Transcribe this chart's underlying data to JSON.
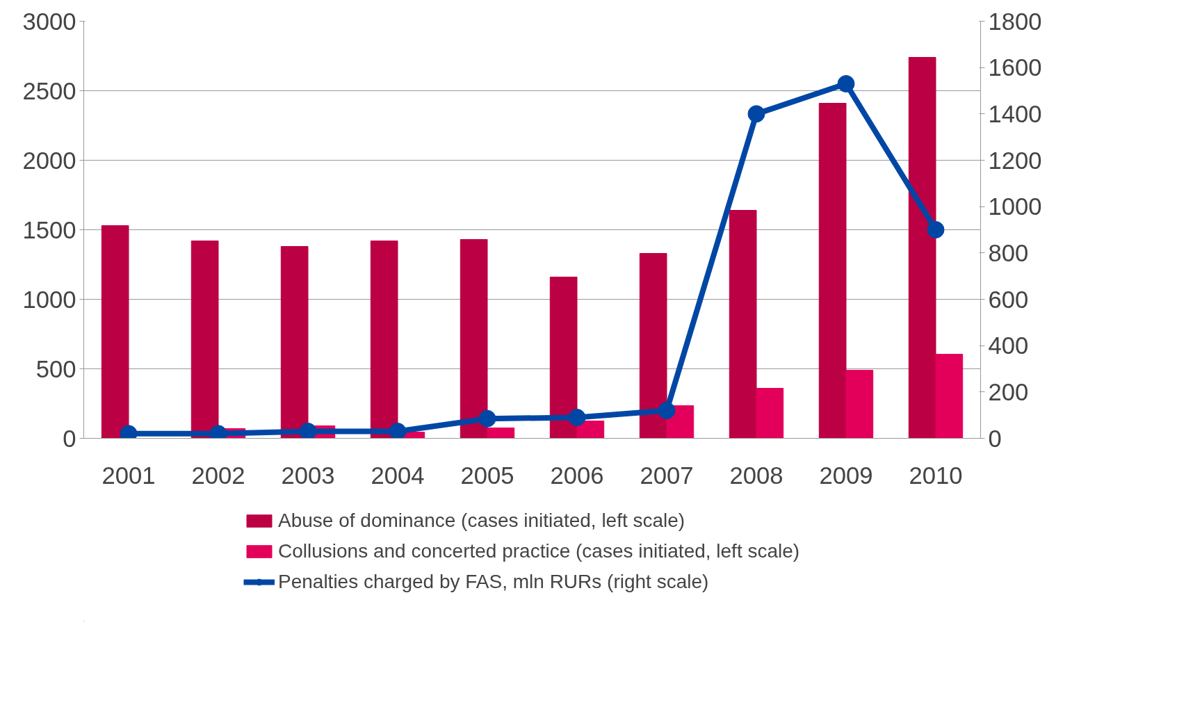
{
  "chart_data": {
    "type": "bar",
    "categories": [
      "2001",
      "2002",
      "2003",
      "2004",
      "2005",
      "2006",
      "2007",
      "2008",
      "2009",
      "2010"
    ],
    "series": [
      {
        "name": "Abuse of dominance (cases initiated, left scale)",
        "color": "#bc0044",
        "values": [
          1530,
          1420,
          1380,
          1420,
          1430,
          1160,
          1330,
          1640,
          2410,
          2740
        ]
      },
      {
        "name": "Collusions and concerted practice (cases initiated, left scale)",
        "color": "#e3005a",
        "values": [
          null,
          70,
          90,
          45,
          75,
          125,
          235,
          360,
          490,
          605
        ]
      },
      {
        "name": "Penalties charged by FAS, mln RURs (right scale)",
        "type": "line",
        "axis": "y2",
        "color": "#0047a5",
        "marker": "circle",
        "values": [
          20,
          20,
          30,
          30,
          85,
          90,
          120,
          1400,
          1530,
          900
        ]
      }
    ],
    "ylim": [
      0,
      3000
    ],
    "yticks": [
      0,
      500,
      1000,
      1500,
      2000,
      2500,
      3000
    ],
    "y2lim": [
      0,
      1800
    ],
    "y2ticks": [
      0,
      200,
      400,
      600,
      800,
      1000,
      1200,
      1400,
      1600,
      1800
    ],
    "grid": "y",
    "legend": "bottom"
  }
}
